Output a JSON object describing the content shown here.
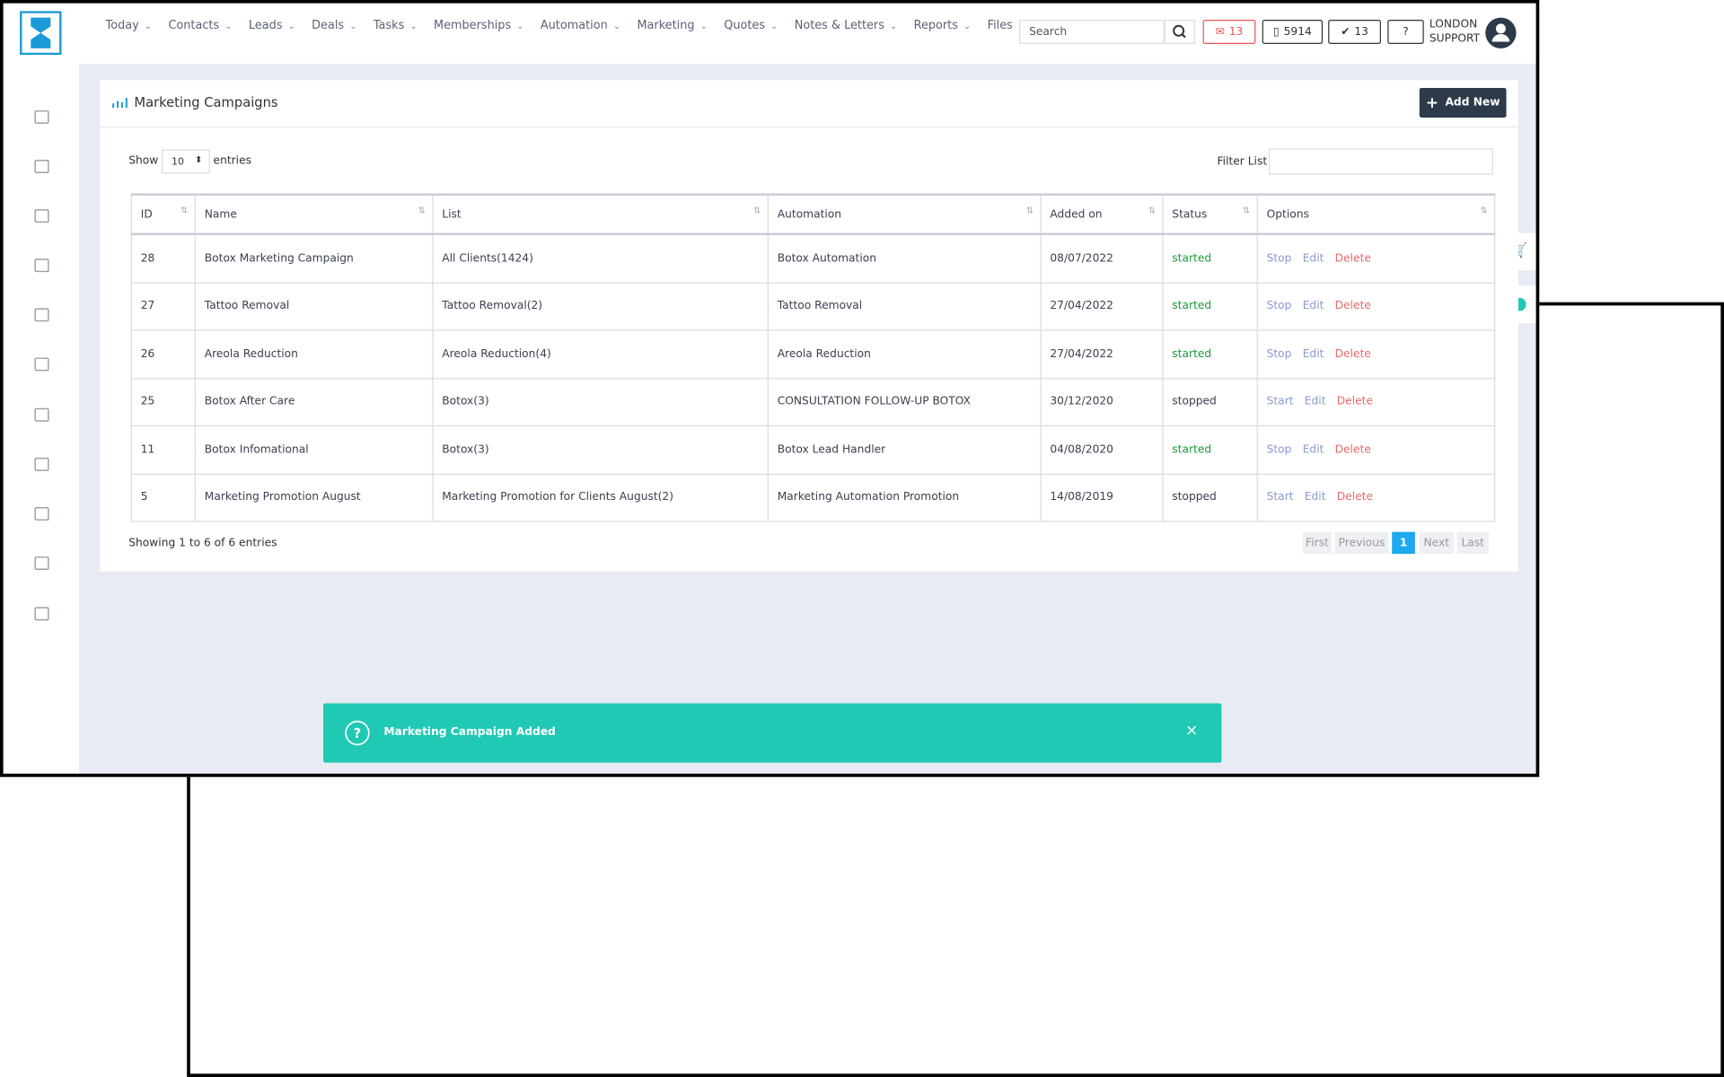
{
  "nav": {
    "items": [
      "Today",
      "Contacts",
      "Leads",
      "Deals",
      "Tasks",
      "Memberships",
      "Automation",
      "Marketing",
      "Quotes",
      "Notes & Letters",
      "Reports",
      "Files"
    ],
    "search_placeholder": "Search",
    "mail_count": "13",
    "phone_count": "5914",
    "task_count": "13",
    "user": [
      "LONDON",
      "SUPPORT"
    ]
  },
  "page": {
    "title": "Marketing Campaigns",
    "add_button": "Add New",
    "show_label": "Show",
    "entries_value": "10",
    "entries_label": "entries",
    "filter_label": "Filter List"
  },
  "table": {
    "columns": [
      "ID",
      "Name",
      "List",
      "Automation",
      "Added on",
      "Status",
      "Options"
    ],
    "rows": [
      {
        "id": "28",
        "name": "Botox Marketing Campaign",
        "list": "All Clients(1424)",
        "automation": "Botox Automation",
        "added_on": "08/07/2022",
        "status": "started",
        "status_color": "#1e9a3c",
        "action": "Stop"
      },
      {
        "id": "27",
        "name": "Tattoo Removal",
        "list": "Tattoo Removal(2)",
        "automation": "Tattoo Removal",
        "added_on": "27/04/2022",
        "status": "started",
        "status_color": "#1e9a3c",
        "action": "Stop"
      },
      {
        "id": "26",
        "name": "Areola Reduction",
        "list": "Areola Reduction(4)",
        "automation": "Areola Reduction",
        "added_on": "27/04/2022",
        "status": "started",
        "status_color": "#1e9a3c",
        "action": "Stop"
      },
      {
        "id": "25",
        "name": "Botox After Care",
        "list": "Botox(3)",
        "automation": "CONSULTATION FOLLOW-UP BOTOX",
        "added_on": "30/12/2020",
        "status": "stopped",
        "status_color": "#3a4150",
        "action": "Start"
      },
      {
        "id": "11",
        "name": "Botox Infomational",
        "list": "Botox(3)",
        "automation": "Botox Lead Handler",
        "added_on": "04/08/2020",
        "status": "started",
        "status_color": "#1e9a3c",
        "action": "Stop"
      },
      {
        "id": "5",
        "name": "Marketing Promotion August",
        "list": "Marketing Promotion for Clients August(2)",
        "automation": "Marketing Automation Promotion",
        "added_on": "14/08/2019",
        "status": "stopped",
        "status_color": "#3a4150",
        "action": "Start"
      }
    ],
    "edit_label": "Edit",
    "delete_label": "Delete"
  },
  "footer": {
    "summary": "Showing 1 to 6 of 6 entries",
    "pagination": [
      "First",
      "Previous",
      "1",
      "Next",
      "Last"
    ]
  },
  "toast": {
    "message": "Marketing Campaign Added"
  }
}
